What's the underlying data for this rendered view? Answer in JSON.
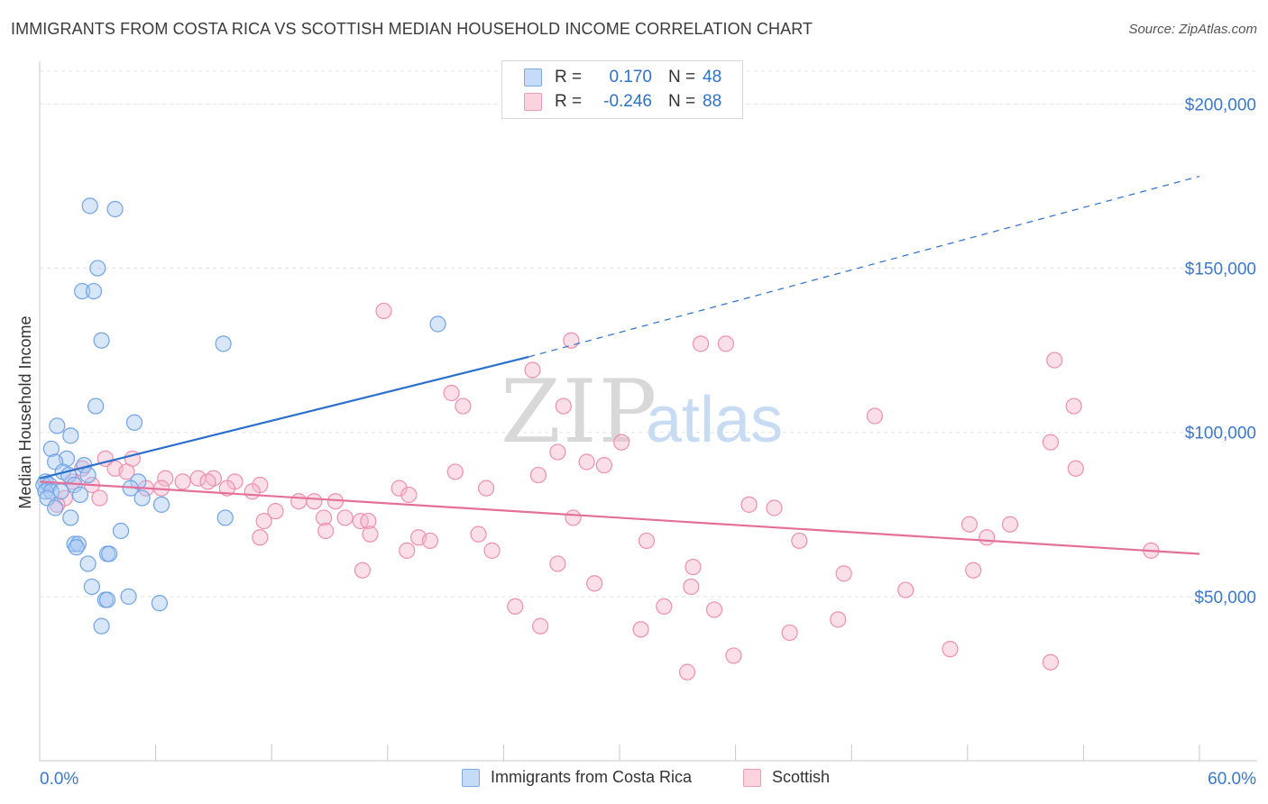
{
  "header": {
    "title": "IMMIGRANTS FROM COSTA RICA VS SCOTTISH MEDIAN HOUSEHOLD INCOME CORRELATION CHART",
    "source": "Source: ZipAtlas.com"
  },
  "watermark": {
    "zip": "ZIP",
    "atlas": "atlas"
  },
  "legend": {
    "rows": [
      {
        "r_label": "R =",
        "r_value": "0.170",
        "n_label": "N =",
        "n_value": "48",
        "color": "#a9c8f2"
      },
      {
        "r_label": "R =",
        "r_value": "-0.246",
        "n_label": "N =",
        "n_value": "88",
        "color": "#f5b8cb"
      }
    ]
  },
  "bottom_legend": {
    "items": [
      {
        "label": "Immigrants from Costa Rica",
        "color": "#a9c8f2"
      },
      {
        "label": "Scottish",
        "color": "#f5b8cb"
      }
    ]
  },
  "chart_data": {
    "type": "scatter",
    "title": "IMMIGRANTS FROM COSTA RICA VS SCOTTISH MEDIAN HOUSEHOLD INCOME CORRELATION CHART",
    "xlabel": "",
    "ylabel": "Median Household Income",
    "xlim": [
      0,
      60
    ],
    "ylim": [
      0,
      210000
    ],
    "x_tick_labels": [
      "0.0%",
      "60.0%"
    ],
    "y_ticks": [
      50000,
      100000,
      150000,
      200000
    ],
    "y_tick_labels": [
      "$50,000",
      "$100,000",
      "$150,000",
      "$200,000"
    ],
    "grid": true,
    "legend_position": "top-center",
    "colors": {
      "costa_rica": "#6fa3e6",
      "scottish": "#ee8fae",
      "costa_line": "#2a6fcc",
      "scottish_line": "#e4709a"
    },
    "series": [
      {
        "name": "Immigrants from Costa Rica",
        "points": [
          [
            2.6,
            169000
          ],
          [
            3.9,
            168000
          ],
          [
            3.0,
            150000
          ],
          [
            2.2,
            143000
          ],
          [
            2.8,
            143000
          ],
          [
            3.2,
            128000
          ],
          [
            9.5,
            127000
          ],
          [
            20.6,
            133000
          ],
          [
            2.9,
            108000
          ],
          [
            0.9,
            102000
          ],
          [
            4.9,
            103000
          ],
          [
            1.6,
            99000
          ],
          [
            0.6,
            95000
          ],
          [
            1.4,
            92000
          ],
          [
            0.8,
            91000
          ],
          [
            2.3,
            90000
          ],
          [
            1.2,
            88000
          ],
          [
            2.5,
            87000
          ],
          [
            1.5,
            87000
          ],
          [
            5.1,
            85000
          ],
          [
            0.3,
            85000
          ],
          [
            0.2,
            84000
          ],
          [
            0.5,
            84000
          ],
          [
            1.8,
            84000
          ],
          [
            0.3,
            82000
          ],
          [
            0.6,
            82000
          ],
          [
            1.1,
            82000
          ],
          [
            4.7,
            83000
          ],
          [
            2.1,
            81000
          ],
          [
            0.4,
            80000
          ],
          [
            5.3,
            80000
          ],
          [
            6.3,
            78000
          ],
          [
            0.8,
            77000
          ],
          [
            9.6,
            74000
          ],
          [
            1.6,
            74000
          ],
          [
            4.2,
            70000
          ],
          [
            1.8,
            66000
          ],
          [
            2.0,
            66000
          ],
          [
            1.9,
            65000
          ],
          [
            3.5,
            63000
          ],
          [
            3.6,
            63000
          ],
          [
            2.5,
            60000
          ],
          [
            2.7,
            53000
          ],
          [
            4.6,
            50000
          ],
          [
            3.4,
            49000
          ],
          [
            3.5,
            49000
          ],
          [
            6.2,
            48000
          ],
          [
            3.2,
            41000
          ]
        ],
        "trend": {
          "x": [
            0,
            25.3
          ],
          "y": [
            86000,
            123000
          ],
          "extended_x": [
            25.3,
            60
          ],
          "extended_y": [
            123000,
            178000
          ]
        }
      },
      {
        "name": "Scottish",
        "points": [
          [
            17.8,
            137000
          ],
          [
            27.5,
            128000
          ],
          [
            34.2,
            127000
          ],
          [
            35.5,
            127000
          ],
          [
            52.5,
            122000
          ],
          [
            25.5,
            119000
          ],
          [
            21.3,
            112000
          ],
          [
            21.9,
            108000
          ],
          [
            27.1,
            108000
          ],
          [
            43.2,
            105000
          ],
          [
            53.5,
            108000
          ],
          [
            30.1,
            97000
          ],
          [
            52.3,
            97000
          ],
          [
            26.8,
            94000
          ],
          [
            28.3,
            91000
          ],
          [
            29.2,
            90000
          ],
          [
            53.6,
            89000
          ],
          [
            3.4,
            92000
          ],
          [
            4.8,
            92000
          ],
          [
            2.2,
            89000
          ],
          [
            3.9,
            89000
          ],
          [
            4.5,
            88000
          ],
          [
            21.5,
            88000
          ],
          [
            25.8,
            87000
          ],
          [
            8.2,
            86000
          ],
          [
            9.0,
            86000
          ],
          [
            6.5,
            86000
          ],
          [
            7.4,
            85000
          ],
          [
            8.7,
            85000
          ],
          [
            10.1,
            85000
          ],
          [
            1.7,
            85000
          ],
          [
            2.7,
            84000
          ],
          [
            11.4,
            84000
          ],
          [
            5.5,
            83000
          ],
          [
            6.3,
            83000
          ],
          [
            18.6,
            83000
          ],
          [
            9.7,
            83000
          ],
          [
            23.1,
            83000
          ],
          [
            11.0,
            82000
          ],
          [
            19.1,
            81000
          ],
          [
            1.3,
            80000
          ],
          [
            3.1,
            80000
          ],
          [
            13.4,
            79000
          ],
          [
            14.2,
            79000
          ],
          [
            15.3,
            79000
          ],
          [
            0.9,
            78000
          ],
          [
            36.7,
            78000
          ],
          [
            38.0,
            77000
          ],
          [
            12.2,
            76000
          ],
          [
            14.7,
            74000
          ],
          [
            15.8,
            74000
          ],
          [
            27.6,
            74000
          ],
          [
            16.6,
            73000
          ],
          [
            17.0,
            73000
          ],
          [
            11.6,
            73000
          ],
          [
            48.1,
            72000
          ],
          [
            50.2,
            72000
          ],
          [
            14.8,
            70000
          ],
          [
            22.7,
            69000
          ],
          [
            17.1,
            69000
          ],
          [
            19.6,
            68000
          ],
          [
            49.0,
            68000
          ],
          [
            11.4,
            68000
          ],
          [
            20.2,
            67000
          ],
          [
            31.4,
            67000
          ],
          [
            39.3,
            67000
          ],
          [
            57.5,
            64000
          ],
          [
            19.0,
            64000
          ],
          [
            23.4,
            64000
          ],
          [
            26.8,
            60000
          ],
          [
            33.8,
            59000
          ],
          [
            48.3,
            58000
          ],
          [
            16.7,
            58000
          ],
          [
            41.6,
            57000
          ],
          [
            28.7,
            54000
          ],
          [
            33.7,
            53000
          ],
          [
            44.8,
            52000
          ],
          [
            32.3,
            47000
          ],
          [
            34.9,
            46000
          ],
          [
            24.6,
            47000
          ],
          [
            41.3,
            43000
          ],
          [
            25.9,
            41000
          ],
          [
            31.1,
            40000
          ],
          [
            38.8,
            39000
          ],
          [
            35.9,
            32000
          ],
          [
            47.1,
            34000
          ],
          [
            52.3,
            30000
          ],
          [
            33.5,
            27000
          ]
        ],
        "trend": {
          "x": [
            0,
            60
          ],
          "y": [
            85000,
            63000
          ]
        }
      }
    ]
  }
}
